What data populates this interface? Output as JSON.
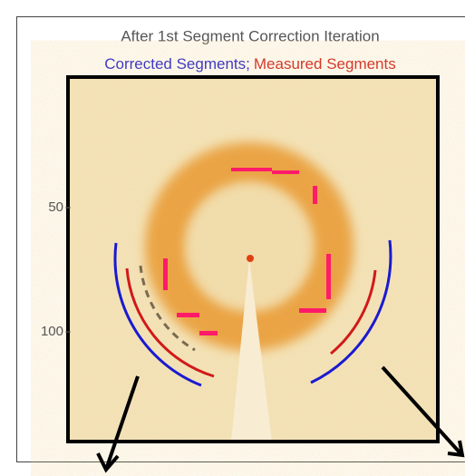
{
  "title": "After 1st Segment Correction Iteration",
  "legend": {
    "corrected": "Corrected Segments;",
    "measured": "Measured Segments"
  },
  "yticks": [
    "50",
    "100"
  ]
}
